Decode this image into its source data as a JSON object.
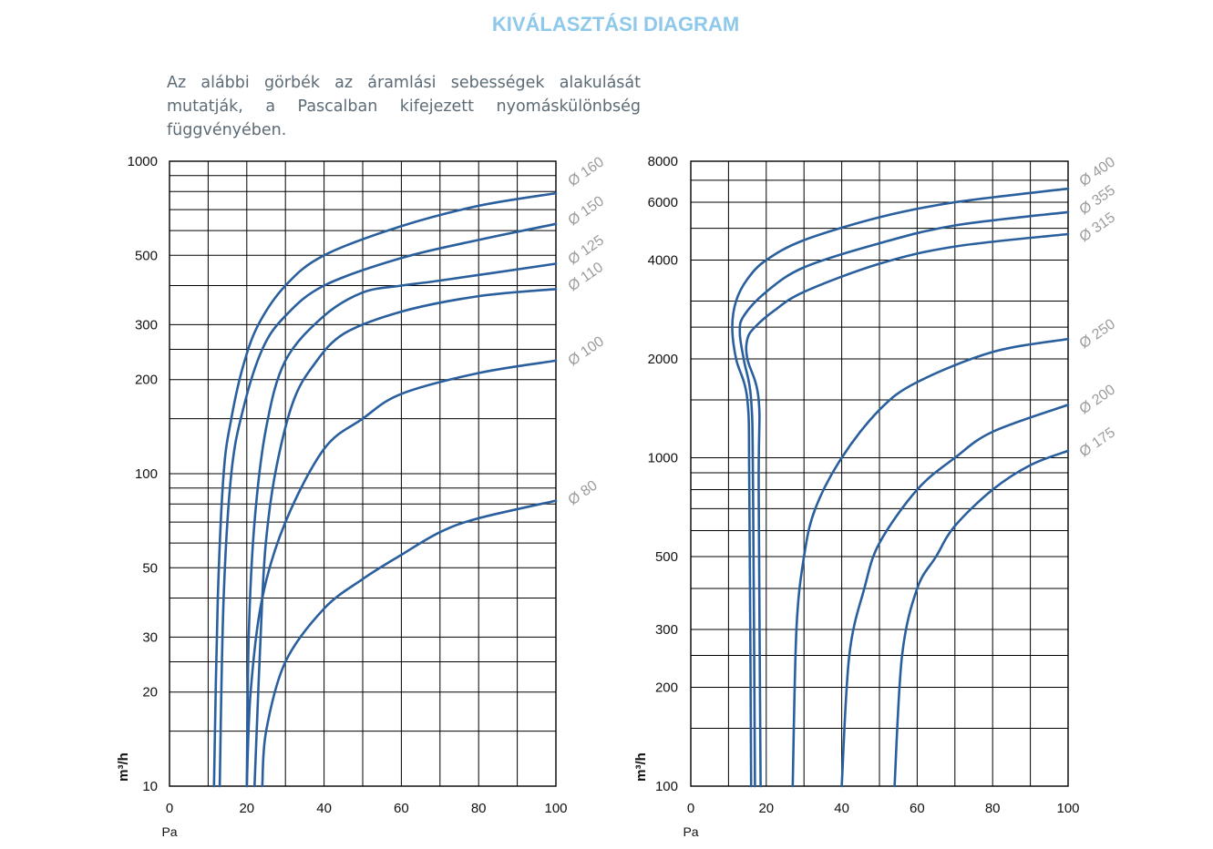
{
  "title": "KIVÁLASZTÁSI DIAGRAM",
  "intro": "Az alábbi görbék az áramlási sebességek alakulását mutatják, a Pascalban kifejezett nyomáskülönbség függvényében.",
  "colors": {
    "title": "#8ec8ea",
    "curve": "#2a5f9e",
    "series_label": "#9c9c9c",
    "grid": "#000000"
  },
  "chart_data": [
    {
      "type": "line",
      "xlabel": "Pa",
      "ylabel": "m³/h",
      "x_ticks": [
        "0",
        "20",
        "40",
        "60",
        "80",
        "100"
      ],
      "y_ticks": [
        "10",
        "20",
        "30",
        "50",
        "100",
        "200",
        "300",
        "500",
        "1000"
      ],
      "xlim": [
        0,
        100
      ],
      "ylim": [
        10,
        1000
      ],
      "y_scale": "log",
      "grid": true,
      "series": [
        {
          "name": "Ø 160",
          "points": [
            [
              11.5,
              10
            ],
            [
              12.5,
              40
            ],
            [
              14,
              100
            ],
            [
              16,
              150
            ],
            [
              19,
              220
            ],
            [
              23,
              300
            ],
            [
              30,
              400
            ],
            [
              40,
              500
            ],
            [
              60,
              620
            ],
            [
              80,
              720
            ],
            [
              100,
              790
            ]
          ]
        },
        {
          "name": "Ø 150",
          "points": [
            [
              13,
              10
            ],
            [
              14,
              40
            ],
            [
              16,
              100
            ],
            [
              19,
              160
            ],
            [
              24,
              250
            ],
            [
              30,
              320
            ],
            [
              40,
              400
            ],
            [
              60,
              490
            ],
            [
              80,
              560
            ],
            [
              100,
              630
            ]
          ]
        },
        {
          "name": "Ø 125",
          "points": [
            [
              20,
              10
            ],
            [
              20.5,
              30
            ],
            [
              22,
              70
            ],
            [
              25,
              140
            ],
            [
              30,
              230
            ],
            [
              40,
              320
            ],
            [
              50,
              380
            ],
            [
              60,
              400
            ],
            [
              70,
              415
            ],
            [
              100,
              470
            ]
          ]
        },
        {
          "name": "Ø 110",
          "points": [
            [
              22,
              10
            ],
            [
              24,
              40
            ],
            [
              25.5,
              70
            ],
            [
              28,
              110
            ],
            [
              32,
              170
            ],
            [
              37,
              220
            ],
            [
              45,
              280
            ],
            [
              60,
              330
            ],
            [
              80,
              370
            ],
            [
              100,
              390
            ]
          ]
        },
        {
          "name": "Ø 100",
          "points": [
            [
              20,
              10
            ],
            [
              21,
              20
            ],
            [
              24,
              40
            ],
            [
              30,
              70
            ],
            [
              40,
              120
            ],
            [
              50,
              150
            ],
            [
              60,
              180
            ],
            [
              80,
              210
            ],
            [
              100,
              230
            ]
          ]
        },
        {
          "name": "Ø 80",
          "points": [
            [
              24,
              10
            ],
            [
              25,
              15
            ],
            [
              30,
              25
            ],
            [
              40,
              37
            ],
            [
              50,
              46
            ],
            [
              60,
              55
            ],
            [
              70,
              65
            ],
            [
              80,
              72
            ],
            [
              100,
              82
            ]
          ]
        }
      ]
    },
    {
      "type": "line",
      "xlabel": "Pa",
      "ylabel": "m³/h",
      "x_ticks": [
        "0",
        "20",
        "40",
        "60",
        "80",
        "100"
      ],
      "y_ticks": [
        "100",
        "200",
        "300",
        "500",
        "1000",
        "2000",
        "4000",
        "6000",
        "8000"
      ],
      "xlim": [
        0,
        100
      ],
      "ylim": [
        100,
        8000
      ],
      "y_scale": "log",
      "grid": true,
      "series": [
        {
          "name": "Ø 400",
          "points": [
            [
              16,
              100
            ],
            [
              15.5,
              800
            ],
            [
              15,
              1500
            ],
            [
              12,
              2000
            ],
            [
              11,
              2500
            ],
            [
              12,
              3000
            ],
            [
              15,
              3500
            ],
            [
              20,
              4000
            ],
            [
              30,
              4600
            ],
            [
              50,
              5400
            ],
            [
              70,
              6000
            ],
            [
              100,
              6600
            ]
          ]
        },
        {
          "name": "Ø 355",
          "points": [
            [
              17,
              100
            ],
            [
              16.5,
              800
            ],
            [
              16,
              1500
            ],
            [
              14,
              2000
            ],
            [
              13,
              2400
            ],
            [
              14,
              2700
            ],
            [
              20,
              3200
            ],
            [
              30,
              3800
            ],
            [
              50,
              4500
            ],
            [
              70,
              5100
            ],
            [
              100,
              5600
            ]
          ]
        },
        {
          "name": "Ø 315",
          "points": [
            [
              18.5,
              100
            ],
            [
              18,
              800
            ],
            [
              18,
              1500
            ],
            [
              15,
              2000
            ],
            [
              15,
              2300
            ],
            [
              17,
              2500
            ],
            [
              22,
              2800
            ],
            [
              30,
              3200
            ],
            [
              50,
              3900
            ],
            [
              70,
              4400
            ],
            [
              100,
              4800
            ]
          ]
        },
        {
          "name": "Ø 250",
          "points": [
            [
              27,
              100
            ],
            [
              28,
              300
            ],
            [
              30,
              500
            ],
            [
              33,
              700
            ],
            [
              40,
              1000
            ],
            [
              50,
              1400
            ],
            [
              60,
              1700
            ],
            [
              80,
              2100
            ],
            [
              100,
              2300
            ]
          ]
        },
        {
          "name": "Ø 200",
          "points": [
            [
              40,
              100
            ],
            [
              42,
              250
            ],
            [
              46,
              400
            ],
            [
              50,
              550
            ],
            [
              60,
              800
            ],
            [
              70,
              1000
            ],
            [
              80,
              1200
            ],
            [
              100,
              1450
            ]
          ]
        },
        {
          "name": "Ø 175",
          "points": [
            [
              54,
              100
            ],
            [
              56,
              250
            ],
            [
              60,
              400
            ],
            [
              65,
              500
            ],
            [
              70,
              620
            ],
            [
              80,
              800
            ],
            [
              90,
              950
            ],
            [
              100,
              1050
            ]
          ]
        }
      ]
    }
  ]
}
